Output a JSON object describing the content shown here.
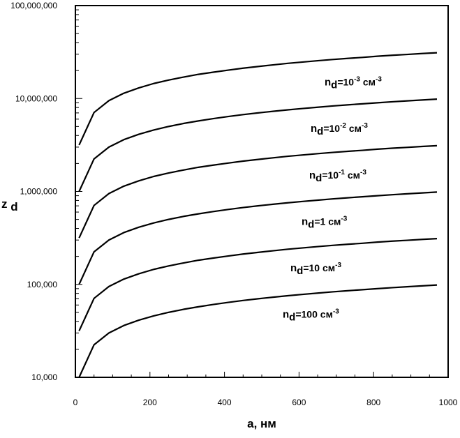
{
  "chart_data": {
    "type": "line",
    "title": "",
    "xlabel": "a, нм",
    "ylabel_main": "z",
    "ylabel_sub": "d",
    "xlim": [
      0,
      1000
    ],
    "ylim": [
      10000,
      100000000
    ],
    "y_scale": "log",
    "grid": false,
    "legend": "inline labels next to each curve",
    "line_color": "#000000",
    "x_ticks": [
      0,
      200,
      400,
      600,
      800,
      1000
    ],
    "x_tick_labels": [
      "0",
      "200",
      "400",
      "600",
      "800",
      "1000"
    ],
    "y_ticks": [
      10000,
      100000,
      1000000,
      10000000,
      100000000
    ],
    "y_tick_labels": [
      "10,000",
      "100,000",
      "1,000,000",
      "10,000,000",
      "100,000,000"
    ],
    "x": [
      10,
      50,
      90,
      130,
      170,
      210,
      250,
      290,
      330,
      370,
      410,
      450,
      490,
      530,
      570,
      610,
      650,
      690,
      730,
      770,
      810,
      850,
      890,
      930,
      970
    ],
    "series": [
      {
        "label_main": "n",
        "label_sub": "d",
        "label_rest": "=10",
        "label_exp": "-3",
        "label_unit": " см",
        "label_unit_exp": "-3",
        "values": [
          3160000,
          7070000,
          9490000,
          11400000,
          13000000,
          14500000,
          15800000,
          17000000,
          18200000,
          19200000,
          20200000,
          21200000,
          22100000,
          23000000,
          23900000,
          24700000,
          25500000,
          26300000,
          27000000,
          27700000,
          28500000,
          29200000,
          29800000,
          30500000,
          31100000
        ]
      },
      {
        "label_main": "n",
        "label_sub": "d",
        "label_rest": "=10",
        "label_exp": "-2",
        "label_unit": " см",
        "label_unit_exp": "-3",
        "values": [
          1000000,
          2240000,
          3000000,
          3610000,
          4120000,
          4580000,
          5000000,
          5390000,
          5740000,
          6080000,
          6400000,
          6710000,
          7000000,
          7280000,
          7550000,
          7810000,
          8060000,
          8310000,
          8540000,
          8770000,
          9000000,
          9220000,
          9430000,
          9640000,
          9850000
        ]
      },
      {
        "label_main": "n",
        "label_sub": "d",
        "label_rest": "=10",
        "label_exp": "-1",
        "label_unit": " см",
        "label_unit_exp": "-3",
        "values": [
          316000,
          707000,
          949000,
          1140000,
          1300000,
          1450000,
          1580000,
          1700000,
          1820000,
          1920000,
          2020000,
          2120000,
          2210000,
          2300000,
          2390000,
          2470000,
          2550000,
          2630000,
          2700000,
          2770000,
          2850000,
          2920000,
          2980000,
          3050000,
          3110000
        ]
      },
      {
        "label_main": "n",
        "label_sub": "d",
        "label_rest": "=1",
        "label_exp": "",
        "label_unit": " см",
        "label_unit_exp": "-3",
        "values": [
          100000,
          224000,
          300000,
          361000,
          412000,
          458000,
          500000,
          539000,
          574000,
          608000,
          640000,
          671000,
          700000,
          728000,
          755000,
          781000,
          806000,
          831000,
          854000,
          877000,
          900000,
          922000,
          943000,
          964000,
          985000
        ]
      },
      {
        "label_main": "n",
        "label_sub": "d",
        "label_rest": "=10",
        "label_exp": "",
        "label_unit": " см",
        "label_unit_exp": "-3",
        "values": [
          31600,
          70700,
          94900,
          114000,
          130000,
          145000,
          158000,
          170000,
          182000,
          192000,
          202000,
          212000,
          221000,
          230000,
          239000,
          247000,
          255000,
          263000,
          270000,
          277000,
          285000,
          292000,
          298000,
          305000,
          311000
        ]
      },
      {
        "label_main": "n",
        "label_sub": "d",
        "label_rest": "=100",
        "label_exp": "",
        "label_unit": " см",
        "label_unit_exp": "-3",
        "values": [
          10000,
          22400,
          30000,
          36100,
          41200,
          45800,
          50000,
          53900,
          57400,
          60800,
          64000,
          67100,
          70000,
          72800,
          75500,
          78100,
          80600,
          83100,
          85400,
          87700,
          90000,
          92200,
          94300,
          96400,
          98500
        ]
      }
    ]
  }
}
